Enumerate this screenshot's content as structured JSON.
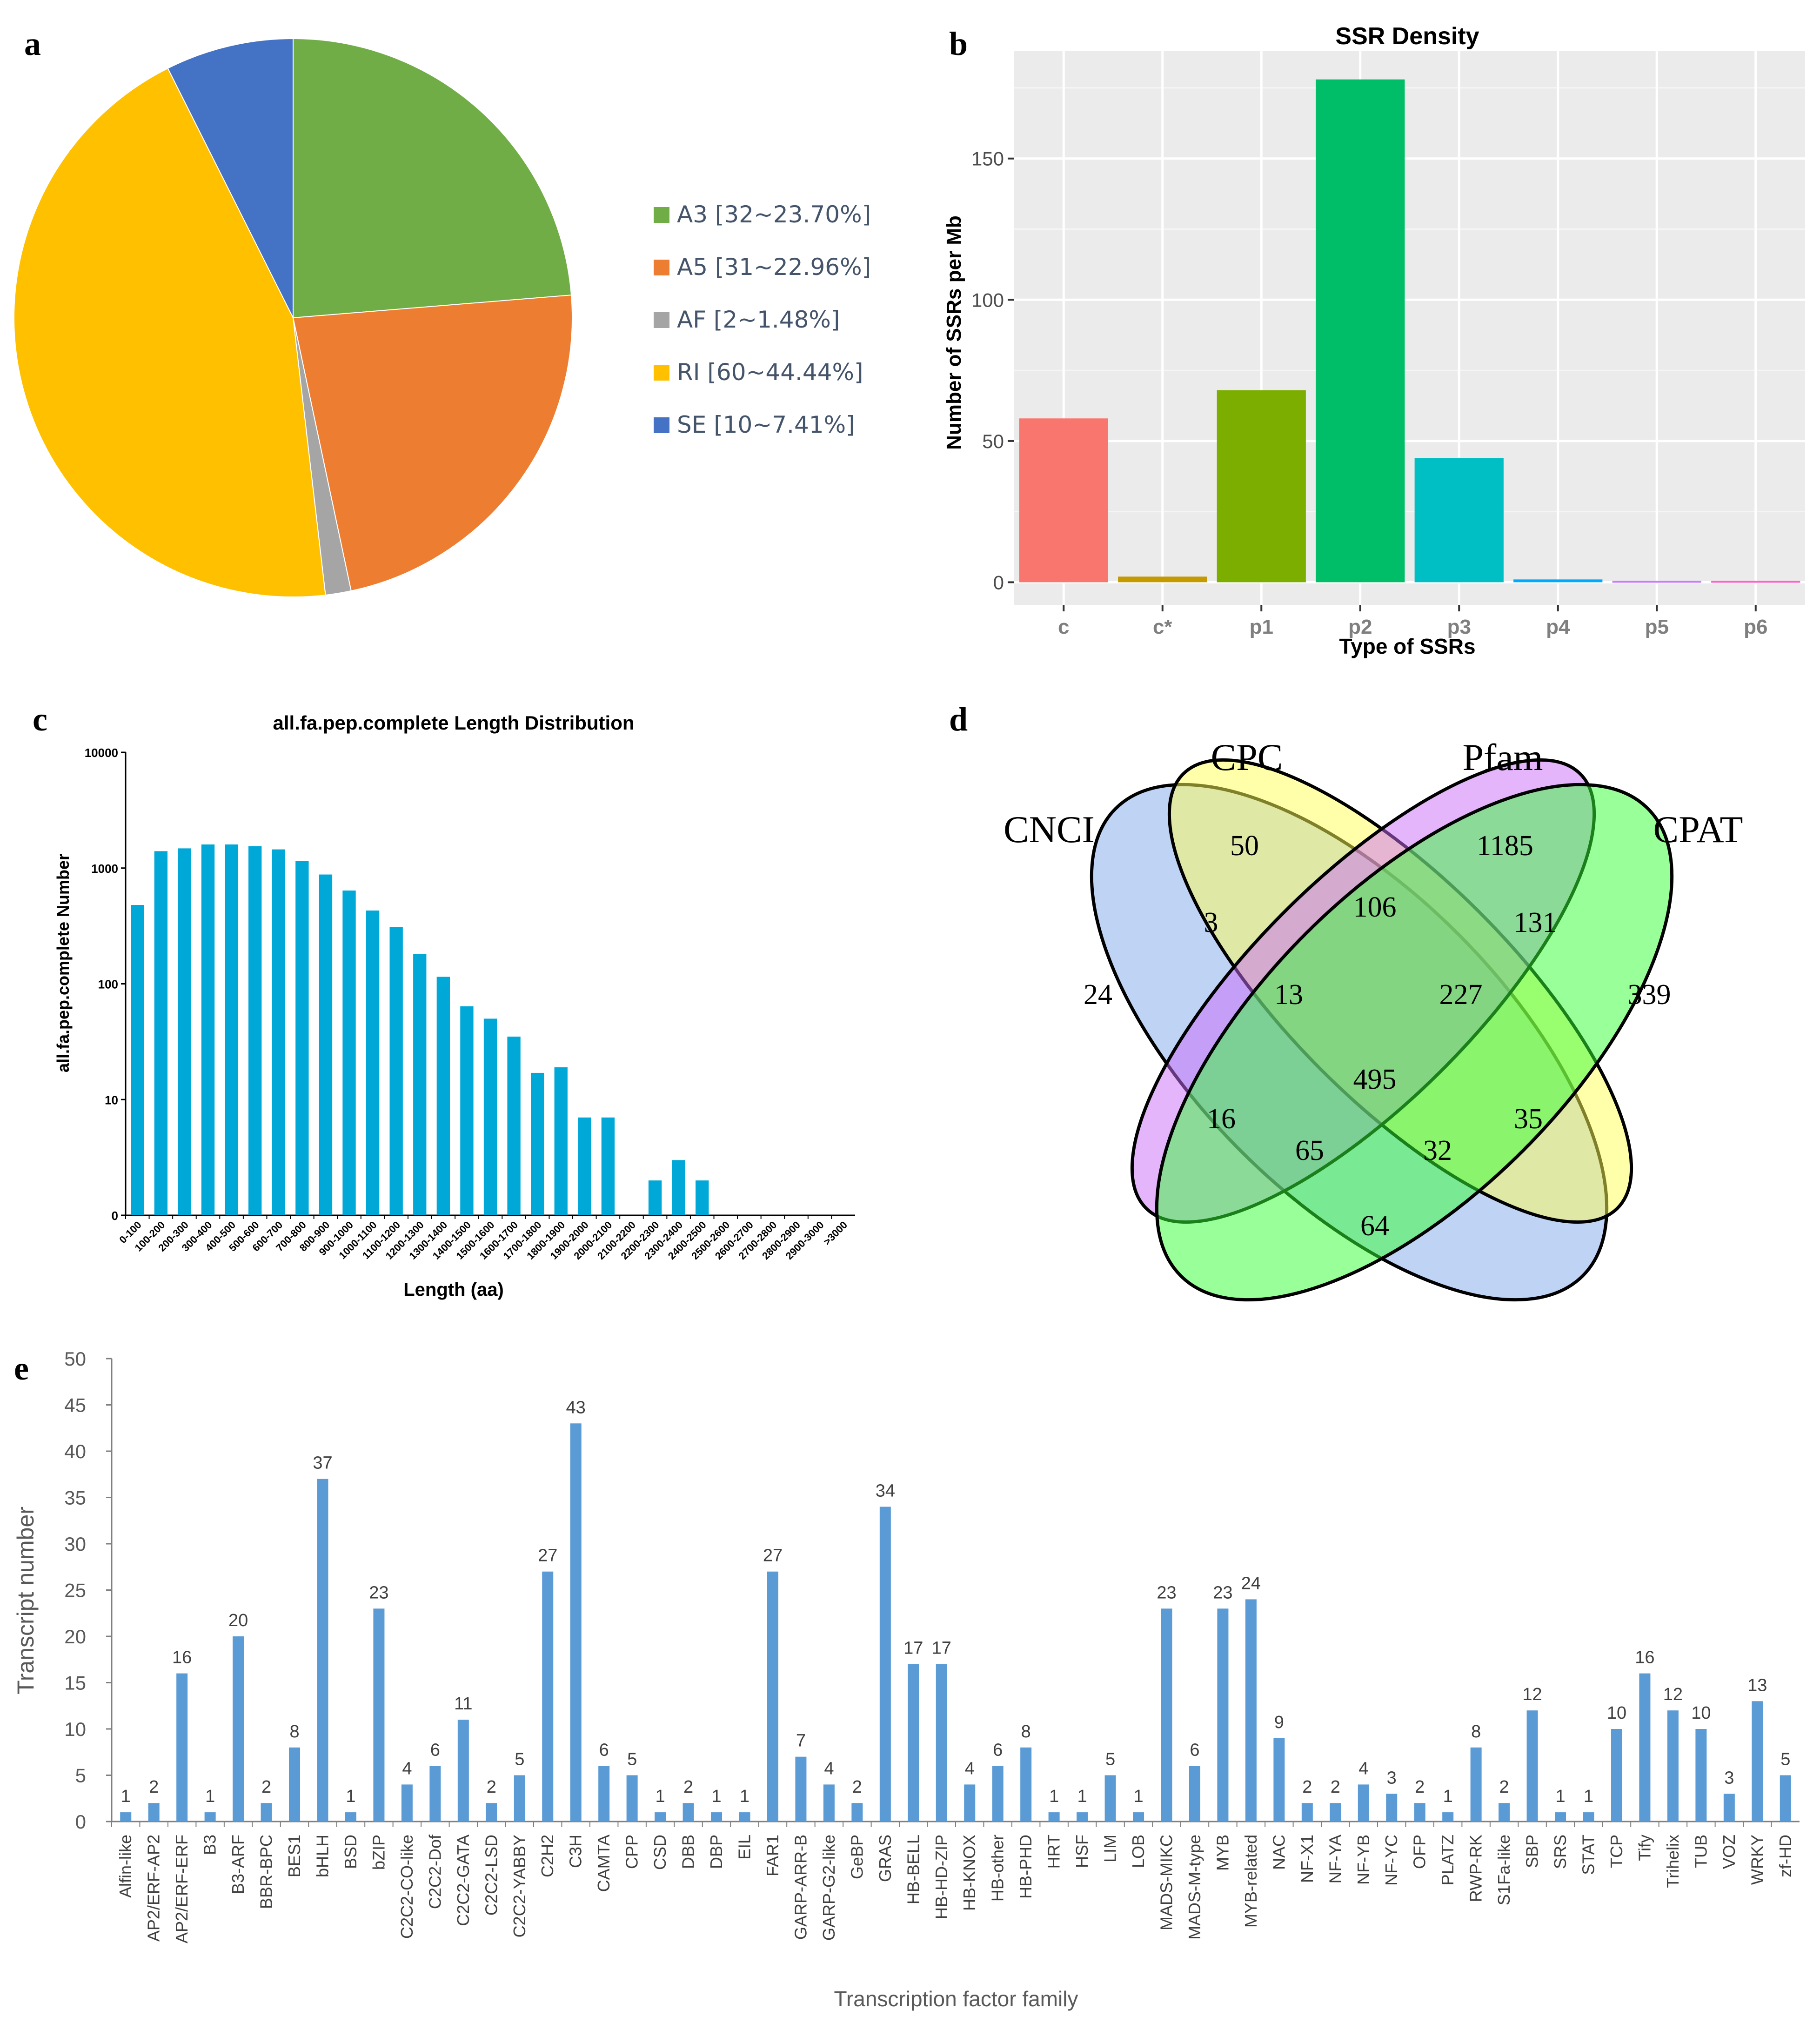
{
  "panels": [
    "a",
    "b",
    "c",
    "d",
    "e"
  ],
  "chart_data": [
    {
      "panel": "a",
      "type": "pie",
      "slices": [
        {
          "label": "A3 [32~23.70%]",
          "value": 32,
          "percent": 23.7,
          "color": "#70ad47"
        },
        {
          "label": "A5 [31~22.96%]",
          "value": 31,
          "percent": 22.96,
          "color": "#ed7d31"
        },
        {
          "label": "AF [2~1.48%]",
          "value": 2,
          "percent": 1.48,
          "color": "#a5a5a5"
        },
        {
          "label": "RI [60~44.44%]",
          "value": 60,
          "percent": 44.44,
          "color": "#ffc000"
        },
        {
          "label": "SE [10~7.41%]",
          "value": 10,
          "percent": 7.41,
          "color": "#4472c4"
        }
      ],
      "legend_position": "right"
    },
    {
      "panel": "b",
      "type": "bar",
      "title": "SSR Density",
      "xlabel": "Type of SSRs",
      "ylabel": "Number of SSRs per Mb",
      "categories": [
        "c",
        "c*",
        "p1",
        "p2",
        "p3",
        "p4",
        "p5",
        "p6"
      ],
      "values": [
        58,
        2,
        68,
        178,
        44,
        1,
        0.5,
        0.5
      ],
      "colors": [
        "#f8766d",
        "#c49a00",
        "#7cae00",
        "#00be67",
        "#00bfc4",
        "#00a9ff",
        "#c77cff",
        "#ff61cc"
      ],
      "ylim": [
        -8,
        188
      ],
      "yticks": [
        0,
        50,
        100,
        150
      ],
      "grid": true
    },
    {
      "panel": "c",
      "type": "bar",
      "title": "all.fa.pep.complete Length Distribution",
      "xlabel": "Length (aa)",
      "ylabel": "all.fa.pep.complete Number",
      "yscale": "log",
      "ytick_labels": [
        "0",
        "10",
        "100",
        "1000",
        "10000"
      ],
      "categories": [
        "0-100",
        "100-200",
        "200-300",
        "300-400",
        "400-500",
        "500-600",
        "600-700",
        "700-800",
        "800-900",
        "900-1000",
        "1000-1100",
        "1100-1200",
        "1200-1300",
        "1300-1400",
        "1400-1500",
        "1500-1600",
        "1600-1700",
        "1700-1800",
        "1800-1900",
        "1900-2000",
        "2000-2100",
        "2100-2200",
        "2200-2300",
        "2300-2400",
        "2400-2500",
        "2500-2600",
        "2600-2700",
        "2700-2800",
        "2800-2900",
        "2900-3000",
        ">3000"
      ],
      "values": [
        480,
        1400,
        1480,
        1600,
        1600,
        1550,
        1450,
        1150,
        880,
        640,
        430,
        310,
        180,
        115,
        64,
        50,
        35,
        17,
        19,
        7,
        7,
        0,
        2,
        3,
        2,
        0,
        0,
        0,
        0,
        0,
        0
      ],
      "color": "#00a8d8"
    },
    {
      "panel": "d",
      "type": "venn",
      "sets": [
        {
          "name": "CNCI",
          "color": "#7fa7eb"
        },
        {
          "name": "CPC",
          "color": "#ffff55"
        },
        {
          "name": "Pfam",
          "color": "#cc6bfa"
        },
        {
          "name": "CPAT",
          "color": "#33ff33"
        }
      ],
      "regions": [
        {
          "sets": [
            "CNCI"
          ],
          "value": 24
        },
        {
          "sets": [
            "CPC"
          ],
          "value": 50
        },
        {
          "sets": [
            "Pfam"
          ],
          "value": 1185
        },
        {
          "sets": [
            "CPAT"
          ],
          "value": 339
        },
        {
          "sets": [
            "CNCI",
            "CPC"
          ],
          "value": 3
        },
        {
          "sets": [
            "CPC",
            "Pfam"
          ],
          "value": 106
        },
        {
          "sets": [
            "Pfam",
            "CPAT"
          ],
          "value": 131
        },
        {
          "sets": [
            "CNCI",
            "CPC",
            "Pfam"
          ],
          "value": 13
        },
        {
          "sets": [
            "CPC",
            "Pfam",
            "CPAT"
          ],
          "value": 227
        },
        {
          "sets": [
            "CNCI",
            "CPC",
            "Pfam",
            "CPAT"
          ],
          "value": 495
        },
        {
          "sets": [
            "CNCI",
            "Pfam"
          ],
          "value": 16
        },
        {
          "sets": [
            "CPC",
            "CPAT"
          ],
          "value": 35
        },
        {
          "sets": [
            "CNCI",
            "Pfam",
            "CPAT"
          ],
          "value": 65
        },
        {
          "sets": [
            "CNCI",
            "CPC",
            "CPAT"
          ],
          "value": 32
        },
        {
          "sets": [
            "CNCI",
            "CPAT"
          ],
          "value": 64
        }
      ]
    },
    {
      "panel": "e",
      "type": "bar",
      "xlabel": "Transcription factor family",
      "ylabel": "Transcript number",
      "ylim": [
        0,
        50
      ],
      "yticks": [
        0,
        5,
        10,
        15,
        20,
        25,
        30,
        35,
        40,
        45,
        50
      ],
      "color": "#5b9bd5",
      "categories": [
        "Alfin-like",
        "AP2/ERF-AP2",
        "AP2/ERF-ERF",
        "B3",
        "B3-ARF",
        "BBR-BPC",
        "BES1",
        "bHLH",
        "BSD",
        "bZIP",
        "C2C2-CO-like",
        "C2C2-Dof",
        "C2C2-GATA",
        "C2C2-LSD",
        "C2C2-YABBY",
        "C2H2",
        "C3H",
        "CAMTA",
        "CPP",
        "CSD",
        "DBB",
        "DBP",
        "EIL",
        "FAR1",
        "GARP-ARR-B",
        "GARP-G2-like",
        "GeBP",
        "GRAS",
        "HB-BELL",
        "HB-HD-ZIP",
        "HB-KNOX",
        "HB-other",
        "HB-PHD",
        "HRT",
        "HSF",
        "LIM",
        "LOB",
        "MADS-MIKC",
        "MADS-M-type",
        "MYB",
        "MYB-related",
        "NAC",
        "NF-X1",
        "NF-YA",
        "NF-YB",
        "NF-YC",
        "OFP",
        "PLATZ",
        "RWP-RK",
        "S1Fa-like",
        "SBP",
        "SRS",
        "STAT",
        "TCP",
        "Tify",
        "Trihelix",
        "TUB",
        "VOZ",
        "WRKY",
        "zf-HD"
      ],
      "values": [
        1,
        2,
        16,
        1,
        20,
        2,
        8,
        37,
        1,
        23,
        4,
        6,
        11,
        2,
        5,
        27,
        43,
        6,
        5,
        1,
        2,
        1,
        1,
        27,
        7,
        4,
        2,
        34,
        17,
        17,
        4,
        6,
        8,
        1,
        1,
        5,
        1,
        23,
        6,
        23,
        24,
        9,
        2,
        2,
        4,
        3,
        2,
        1,
        8,
        2,
        12,
        1,
        1,
        10,
        16,
        12,
        10,
        3,
        13,
        5
      ]
    }
  ]
}
